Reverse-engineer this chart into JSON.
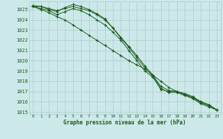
{
  "title": "Graphe pression niveau de la mer (hPa)",
  "background_color": "#cce8e8",
  "grid_color": "#aacccc",
  "line_color": "#1a5c1a",
  "marker_color": "#1a5c1a",
  "xlim": [
    -0.5,
    23.5
  ],
  "ylim": [
    1014.8,
    1025.8
  ],
  "yticks": [
    1015,
    1016,
    1017,
    1018,
    1019,
    1020,
    1021,
    1022,
    1023,
    1024,
    1025
  ],
  "xticks": [
    0,
    1,
    2,
    3,
    4,
    5,
    6,
    7,
    8,
    9,
    10,
    11,
    12,
    13,
    14,
    15,
    16,
    17,
    18,
    19,
    20,
    21,
    22,
    23
  ],
  "series": [
    {
      "x": [
        0,
        1,
        2,
        3,
        4,
        5,
        6,
        7,
        8,
        9,
        10,
        11,
        12,
        13,
        14,
        15,
        16,
        17,
        18,
        19,
        20,
        21,
        22,
        23
      ],
      "y": [
        1025.3,
        1025.3,
        1025.0,
        1024.8,
        1025.2,
        1025.5,
        1025.3,
        1025.0,
        1024.6,
        1024.1,
        1023.2,
        1022.2,
        1021.3,
        1020.3,
        1019.3,
        1018.5,
        1017.3,
        1016.9,
        1016.9,
        1016.6,
        1016.3,
        1015.8,
        1015.5,
        1015.2
      ]
    },
    {
      "x": [
        0,
        1,
        2,
        3,
        4,
        5,
        6,
        7,
        8,
        9,
        10,
        11,
        12,
        13,
        14,
        15,
        16,
        17,
        18,
        19,
        20,
        21,
        22,
        23
      ],
      "y": [
        1025.3,
        1025.1,
        1024.9,
        1024.5,
        1024.8,
        1025.1,
        1024.9,
        1024.5,
        1024.0,
        1023.5,
        1022.8,
        1022.0,
        1021.0,
        1020.0,
        1019.0,
        1018.4,
        1017.2,
        1017.0,
        1017.0,
        1016.8,
        1016.5,
        1016.0,
        1015.7,
        1015.2
      ]
    },
    {
      "x": [
        0,
        1,
        2,
        3,
        4,
        5,
        6,
        7,
        8,
        9,
        10,
        11,
        12,
        13,
        14,
        15,
        16,
        17,
        18,
        19,
        20,
        21,
        22,
        23
      ],
      "y": [
        1025.3,
        1025.0,
        1024.7,
        1024.3,
        1024.0,
        1023.5,
        1023.0,
        1022.5,
        1022.0,
        1021.5,
        1021.0,
        1020.5,
        1020.0,
        1019.6,
        1019.2,
        1018.6,
        1018.0,
        1017.4,
        1017.0,
        1016.7,
        1016.4,
        1016.0,
        1015.7,
        1015.2
      ]
    },
    {
      "x": [
        0,
        1,
        2,
        3,
        4,
        5,
        6,
        7,
        8,
        9,
        10,
        11,
        12,
        13,
        14,
        15,
        16,
        17,
        18,
        19,
        20,
        21,
        22,
        23
      ],
      "y": [
        1025.4,
        1025.3,
        1025.1,
        1024.9,
        1025.1,
        1025.3,
        1025.1,
        1024.9,
        1024.5,
        1024.0,
        1023.2,
        1022.3,
        1021.4,
        1020.5,
        1019.5,
        1018.6,
        1017.5,
        1017.1,
        1017.0,
        1016.7,
        1016.4,
        1015.9,
        1015.6,
        1015.2
      ]
    }
  ]
}
